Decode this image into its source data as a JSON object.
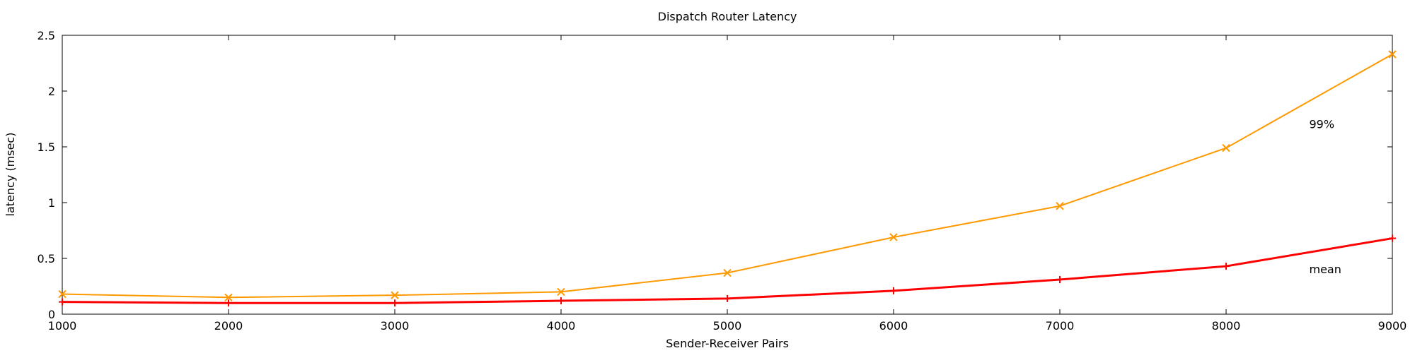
{
  "chart_data": {
    "type": "line",
    "title": "Dispatch Router Latency",
    "xlabel": "Sender-Receiver Pairs",
    "ylabel": "latency (msec)",
    "xlim": [
      1000,
      9000
    ],
    "ylim": [
      0,
      2.5
    ],
    "xticks": [
      1000,
      2000,
      3000,
      4000,
      5000,
      6000,
      7000,
      8000,
      9000
    ],
    "yticks": [
      0,
      0.5,
      1,
      1.5,
      2,
      2.5
    ],
    "ytick_labels": [
      "0",
      "0.5",
      "1",
      "1.5",
      "2",
      "2.5"
    ],
    "grid": false,
    "legend": "none",
    "series": [
      {
        "name": "99%",
        "color": "#ff9900",
        "marker": "x",
        "x": [
          1000,
          2000,
          3000,
          4000,
          5000,
          6000,
          7000,
          8000,
          9000
        ],
        "values": [
          0.18,
          0.15,
          0.17,
          0.2,
          0.37,
          0.69,
          0.97,
          1.49,
          2.33
        ]
      },
      {
        "name": "mean",
        "color": "#ff0000",
        "marker": "+",
        "x": [
          1000,
          2000,
          3000,
          4000,
          5000,
          6000,
          7000,
          8000,
          9000
        ],
        "values": [
          0.11,
          0.1,
          0.1,
          0.12,
          0.14,
          0.21,
          0.31,
          0.43,
          0.68
        ]
      }
    ],
    "annotations": [
      {
        "text": "99%",
        "x": 8500,
        "y": 1.7
      },
      {
        "text": "mean",
        "x": 8500,
        "y": 0.4
      }
    ]
  }
}
